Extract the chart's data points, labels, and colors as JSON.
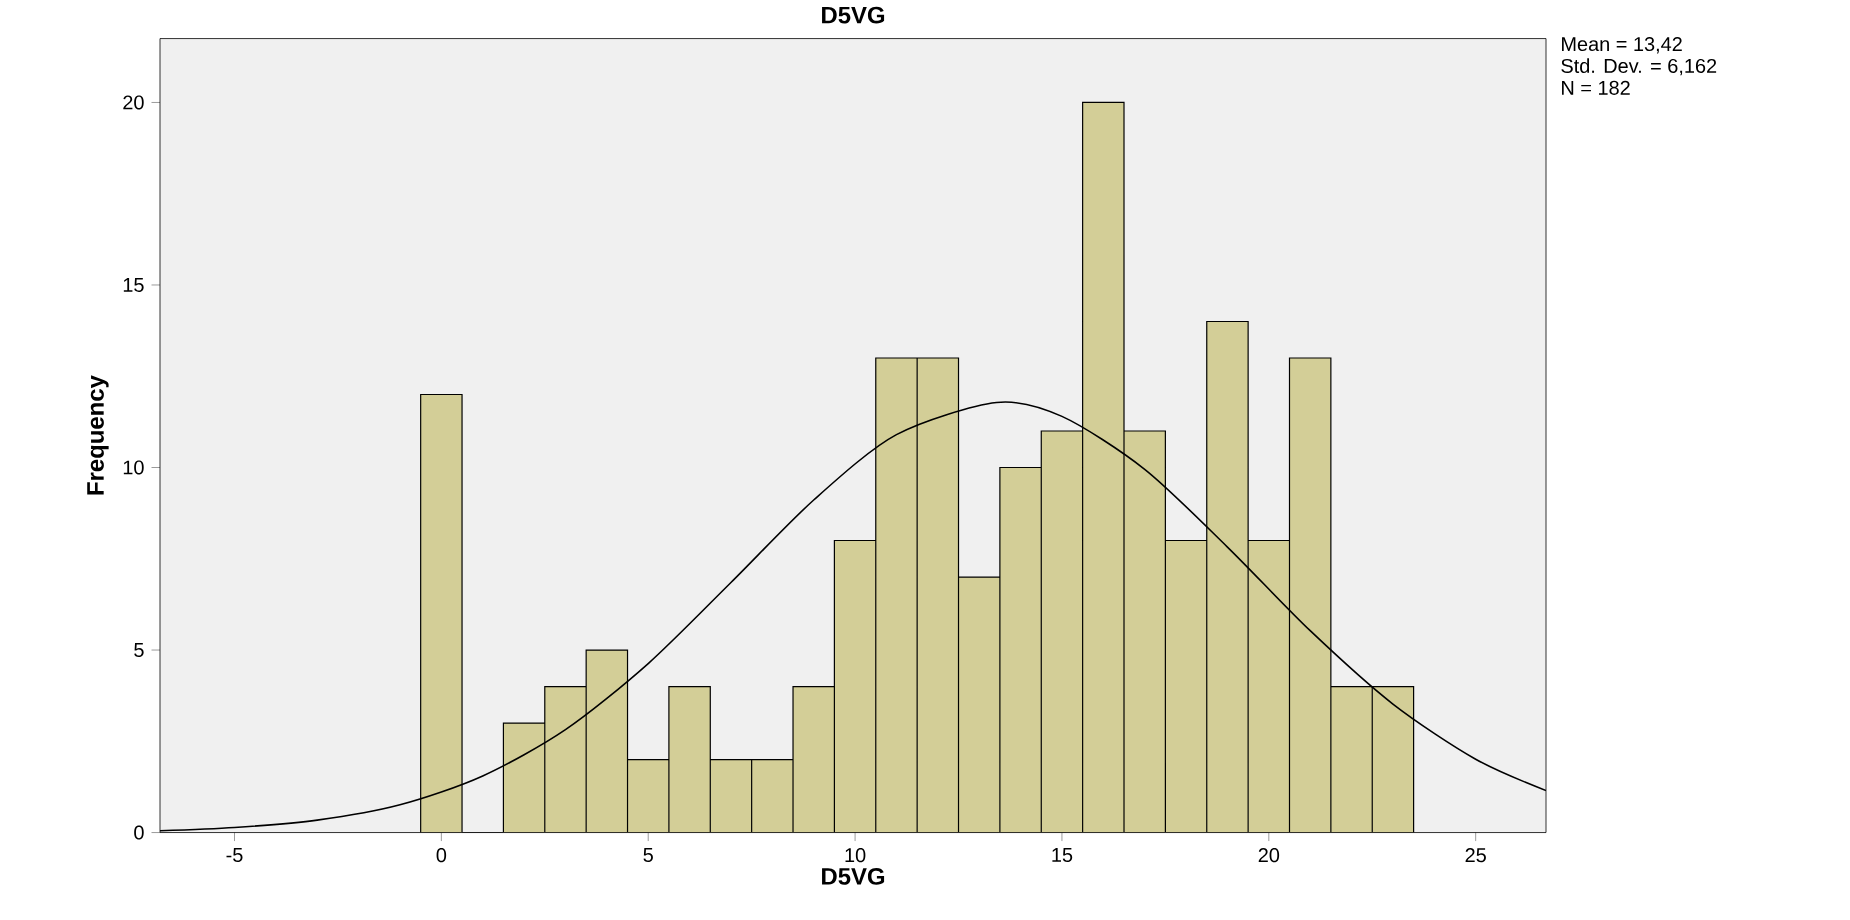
{
  "chart_data": {
    "type": "histogram",
    "title": "D5VG",
    "xlabel": "D5VG",
    "ylabel": "Frequency",
    "bins": [
      -0.5,
      0.5,
      1.5,
      2.5,
      3.5,
      4.5,
      5.5,
      6.5,
      7.5,
      8.5,
      9.5,
      10.5,
      11.5,
      12.5,
      13.5,
      14.5,
      15.5,
      16.5,
      17.5,
      18.5,
      19.5,
      20.5,
      21.5,
      22.5,
      23.5
    ],
    "values": [
      12,
      0,
      3,
      4,
      5,
      2,
      4,
      2,
      2,
      4,
      8,
      13,
      13,
      7,
      10,
      11,
      20,
      11,
      8,
      14,
      8,
      13,
      4,
      4
    ],
    "color": "#d3ce97",
    "series": [
      {
        "type": "line",
        "color": "#000000",
        "x": [
          -6.8,
          -5,
          -3,
          -1,
          1,
          3,
          5,
          7,
          9,
          11,
          13.42,
          15,
          17,
          19,
          21,
          23,
          25,
          26.7
        ],
        "values": [
          0.05,
          0.14,
          0.34,
          0.76,
          1.55,
          2.82,
          4.63,
          6.85,
          9.11,
          10.9,
          11.78,
          11.4,
          9.95,
          7.82,
          5.53,
          3.52,
          2.01,
          1.15
        ]
      }
    ],
    "xlim": [
      -6.8,
      26.7
    ],
    "ylim": [
      0,
      21.75
    ],
    "xticks": [
      -5,
      0,
      5,
      10,
      15,
      20,
      25
    ],
    "yticks": [
      0,
      5,
      10,
      15,
      20
    ],
    "grid": false,
    "annotations": [
      "Mean = 13,42",
      "Std. Dev. = 6,162",
      "N = 182"
    ]
  }
}
